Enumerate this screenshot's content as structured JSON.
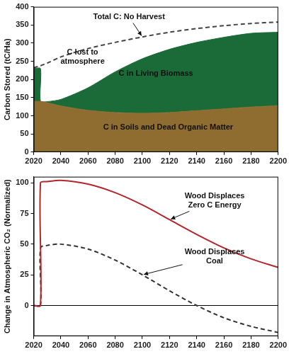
{
  "chart_data": [
    {
      "type": "area",
      "ylabel": "Carbon Stored (tC/Ha)",
      "x": [
        2020,
        2025,
        2025,
        2030,
        2040,
        2060,
        2080,
        2100,
        2120,
        2140,
        2160,
        2180,
        2200
      ],
      "xlim": [
        2020,
        2200
      ],
      "xticks": [
        2020,
        2040,
        2060,
        2080,
        2100,
        2120,
        2140,
        2160,
        2180,
        2200
      ],
      "ylim": [
        0,
        400
      ],
      "yticks": [
        0,
        50,
        100,
        150,
        200,
        250,
        300,
        350,
        400
      ],
      "grid": false,
      "stacked": true,
      "series": [
        {
          "name": "C in Soils and Dead Organic Matter",
          "type": "area",
          "color": "#8f6d30",
          "values": [
            140,
            140,
            140,
            136,
            127,
            115,
            109,
            107,
            109,
            114,
            119,
            124,
            128
          ]
        },
        {
          "name": "C in Living Biomass",
          "type": "area",
          "color": "#1b6b38",
          "values": [
            90,
            90,
            0,
            3,
            18,
            62,
            112,
            150,
            174,
            188,
            197,
            203,
            202
          ]
        },
        {
          "name": "Total C: No Harvest",
          "type": "line",
          "line_style": "dashed",
          "color": "#444444",
          "values": [
            232,
            238,
            238,
            245,
            262,
            285,
            302,
            317,
            330,
            340,
            348,
            354,
            358
          ]
        }
      ],
      "annotations": [
        "C lost to atmosphere"
      ]
    },
    {
      "type": "line",
      "ylabel": "Change in Atmospheric CO₂ (Normalized)",
      "x": [
        2020,
        2025,
        2025,
        2030,
        2040,
        2060,
        2080,
        2100,
        2120,
        2140,
        2160,
        2180,
        2200
      ],
      "xlim": [
        2020,
        2200
      ],
      "xticks": [
        2020,
        2040,
        2060,
        2080,
        2100,
        2120,
        2140,
        2160,
        2180,
        2200
      ],
      "ylim": [
        -25,
        105
      ],
      "yticks": [
        0,
        25,
        50,
        75,
        100
      ],
      "grid": false,
      "reference_line": 0,
      "series": [
        {
          "name": "Wood Displaces Zero C Energy",
          "type": "line",
          "line_style": "solid",
          "color": "#b3262c",
          "values": [
            0,
            0,
            100,
            101,
            102,
            99,
            92,
            82,
            70,
            58,
            47,
            38,
            31
          ]
        },
        {
          "name": "Wood Displaces Coal",
          "type": "line",
          "line_style": "dashed",
          "color": "#333333",
          "values": [
            0,
            0,
            47,
            49,
            50,
            46,
            37,
            25,
            12,
            0,
            -10,
            -17,
            -22
          ]
        }
      ]
    }
  ]
}
